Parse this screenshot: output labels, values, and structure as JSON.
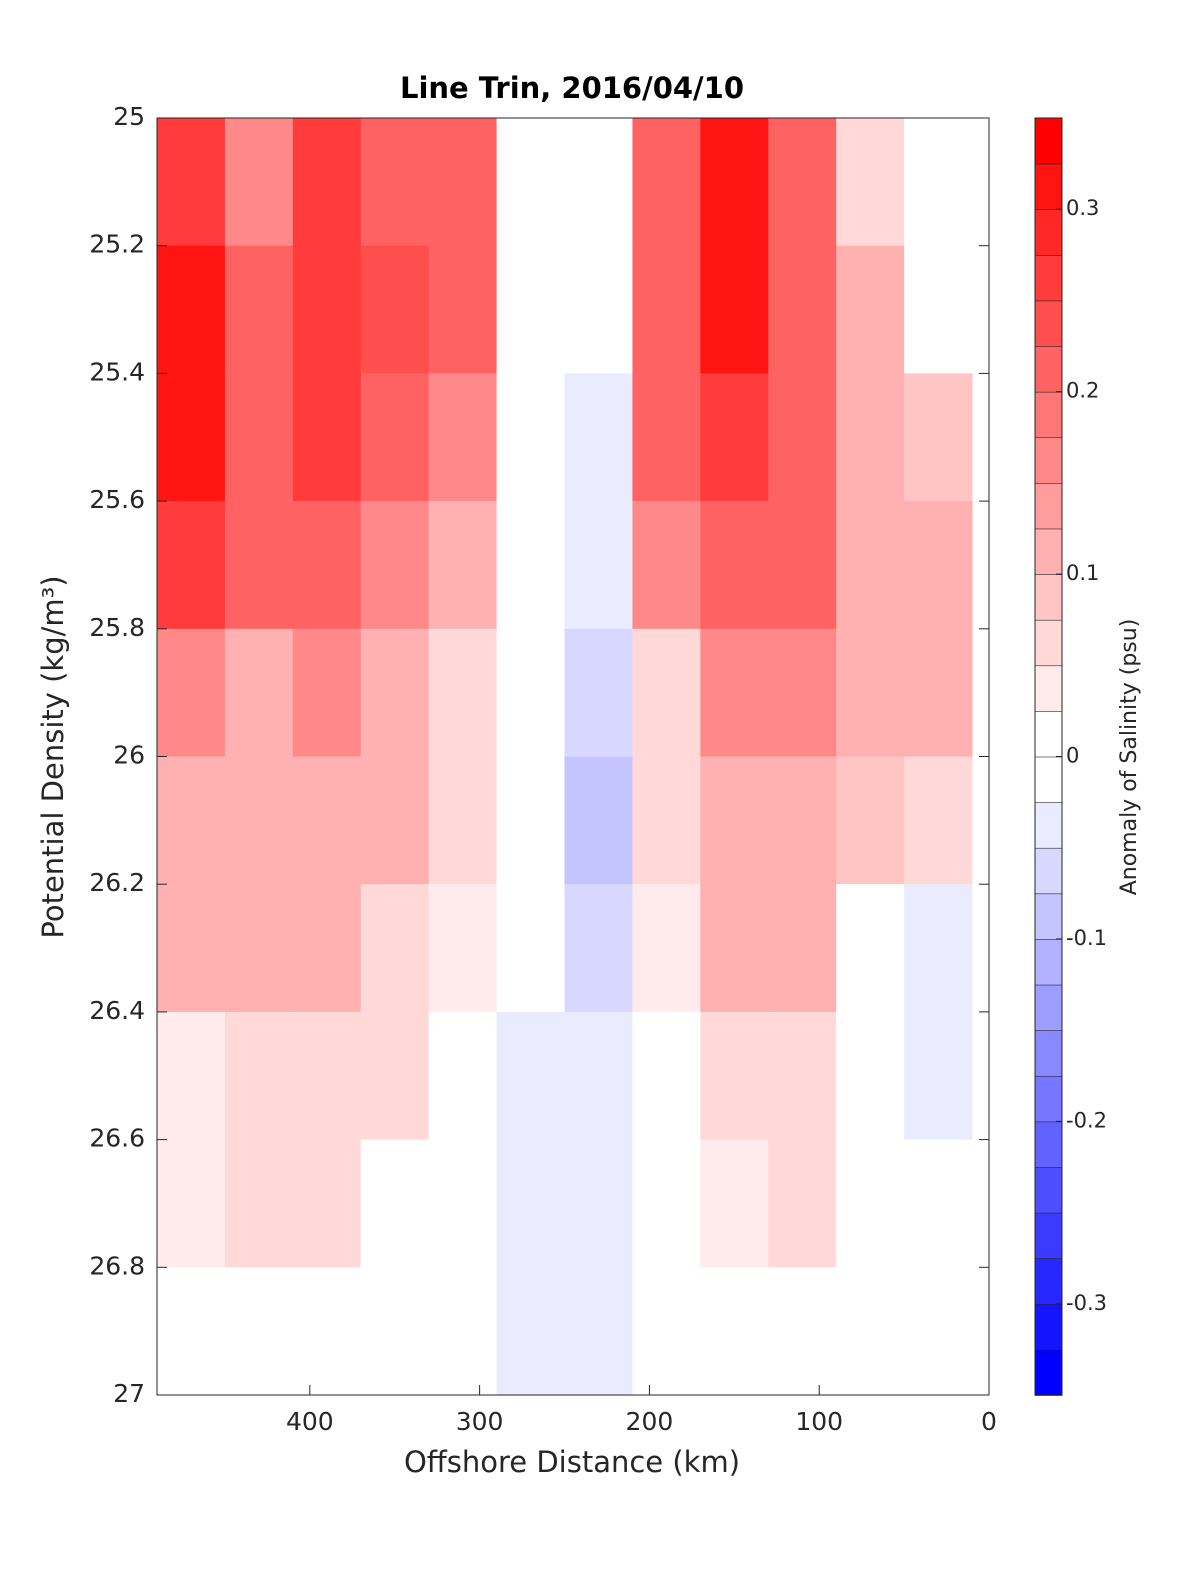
{
  "chart_data": {
    "type": "contour",
    "title": "Line Trin, 2016/04/10",
    "xlabel": "Offshore Distance (km)",
    "ylabel": "Potential Density (kg/m³)",
    "colorbar_label": "Anomaly of Salinity (psu)",
    "xlim": [
      490,
      0
    ],
    "ylim": [
      25,
      27
    ],
    "xticks": [
      400,
      300,
      200,
      100,
      0
    ],
    "yticks": [
      25,
      25.2,
      25.4,
      25.6,
      25.8,
      26,
      26.2,
      26.4,
      26.6,
      26.8,
      27
    ],
    "clim": [
      -0.35,
      0.35
    ],
    "level_step": 0.025,
    "cticks": [
      -0.3,
      -0.2,
      -0.1,
      0,
      0.1,
      0.2,
      0.3
    ],
    "low_color": "#0000ff",
    "mid_color": "#ffffff",
    "high_color": "#ff0000",
    "x": [
      470,
      430,
      390,
      350,
      310,
      270,
      230,
      190,
      150,
      110,
      70,
      30
    ],
    "y": [
      25.1,
      25.3,
      25.5,
      25.7,
      25.9,
      26.1,
      26.3,
      26.5,
      26.7,
      26.9
    ],
    "z": [
      [
        0.25,
        0.15,
        0.27,
        0.22,
        0.2,
        0.02,
        -0.01,
        0.2,
        0.3,
        0.2,
        0.05,
        -0.02
      ],
      [
        0.3,
        0.2,
        0.27,
        0.23,
        0.22,
        0.02,
        -0.02,
        0.22,
        0.3,
        0.22,
        0.1,
        0.02
      ],
      [
        0.3,
        0.22,
        0.25,
        0.22,
        0.17,
        0,
        -0.03,
        0.2,
        0.27,
        0.2,
        0.12,
        0.08
      ],
      [
        0.25,
        0.2,
        0.22,
        0.17,
        0.12,
        0,
        -0.05,
        0.17,
        0.22,
        0.2,
        0.12,
        0.1
      ],
      [
        0.17,
        0.12,
        0.17,
        0.12,
        0.07,
        0,
        -0.06,
        0.07,
        0.17,
        0.17,
        0.12,
        0.1
      ],
      [
        0.12,
        0.1,
        0.12,
        0.1,
        0.05,
        0,
        -0.08,
        0.05,
        0.12,
        0.12,
        0.08,
        0.05
      ],
      [
        0.1,
        0.1,
        0.1,
        0.07,
        0.03,
        0,
        -0.07,
        0.03,
        0.1,
        0.1,
        0.02,
        -0.03
      ],
      [
        0.03,
        0.07,
        0.07,
        0.05,
        0,
        -0.03,
        -0.05,
        0,
        0.05,
        0.07,
        0,
        -0.05
      ],
      [
        0.03,
        0.07,
        0.05,
        0,
        0,
        -0.05,
        -0.04,
        0,
        0.03,
        0.05,
        0,
        -0.02
      ],
      [
        0,
        0.02,
        0,
        0,
        0,
        -0.03,
        -0.03,
        0,
        0,
        0,
        0,
        0
      ]
    ]
  }
}
